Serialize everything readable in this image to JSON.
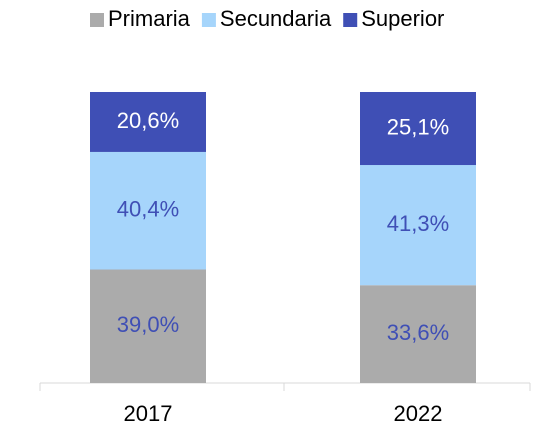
{
  "chart_data": {
    "type": "stacked_bar",
    "categories": [
      "2017",
      "2022"
    ],
    "series": [
      {
        "name": "Primaria",
        "color": "#ababab",
        "values": [
          39.0,
          33.6
        ],
        "value_labels": [
          "39,0%",
          "33,6%"
        ]
      },
      {
        "name": "Secundaria",
        "color": "#a6d5fb",
        "values": [
          40.4,
          41.3
        ],
        "value_labels": [
          "40,4%",
          "41,3%"
        ]
      },
      {
        "name": "Superior",
        "color": "#3f4fb5",
        "values": [
          20.6,
          25.1
        ],
        "value_labels": [
          "20,6%",
          "25,1%"
        ]
      }
    ],
    "ylim": [
      0,
      100
    ],
    "legend": "top"
  }
}
